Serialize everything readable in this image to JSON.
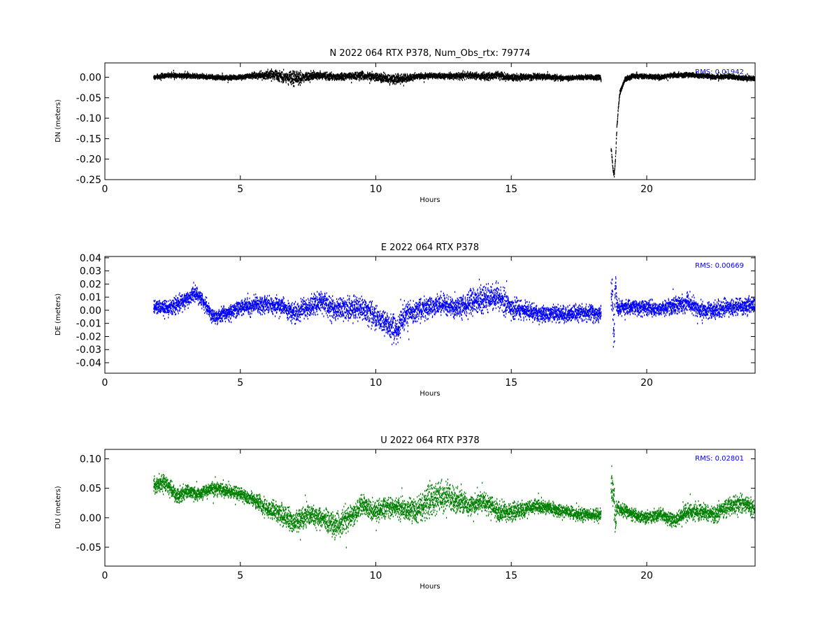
{
  "chart_data": [
    {
      "type": "scatter",
      "title": "N 2022 064 RTX  P378, Num_Obs_rtx: 79774",
      "xlabel": "Hours",
      "ylabel": "DN (meters)",
      "xlim": [
        0,
        24
      ],
      "ylim": [
        -0.25,
        0.035
      ],
      "xticks": [
        "0",
        "5",
        "10",
        "15",
        "20"
      ],
      "yticks": [
        "0.00",
        "-0.05",
        "-0.10",
        "-0.15",
        "-0.20",
        "-0.25"
      ],
      "ytick_values": [
        0.0,
        -0.05,
        -0.1,
        -0.15,
        -0.2,
        -0.25
      ],
      "color": "#000000",
      "rms_label": "RMS:  0.01942",
      "series": [
        {
          "x": [
            1.8,
            2.5,
            3.0,
            3.5,
            4.0,
            4.5,
            5.0,
            5.5,
            6.0,
            6.5,
            7.0,
            7.5,
            8.0,
            8.5,
            9.0,
            9.5,
            10.0,
            10.5,
            11.0,
            11.5,
            12.0,
            12.5,
            13.0,
            13.5,
            14.0,
            14.5,
            15.0,
            15.5,
            16.0,
            16.5,
            17.0,
            17.5,
            18.0,
            18.3,
            18.7,
            18.75,
            18.8,
            18.85,
            18.9,
            19.0,
            19.2,
            19.5,
            20.0,
            20.5,
            21.0,
            21.5,
            22.0,
            22.5,
            23.0,
            23.5,
            24.0
          ],
          "y": [
            0.0,
            0.005,
            0.004,
            0.002,
            0.0,
            -0.002,
            0.0,
            0.004,
            0.006,
            0.003,
            -0.005,
            0.002,
            0.005,
            0.0,
            0.002,
            0.004,
            0.0,
            -0.005,
            -0.003,
            0.002,
            0.004,
            0.002,
            0.003,
            0.004,
            0.002,
            0.005,
            -0.002,
            0.0,
            0.002,
            0.0,
            -0.002,
            0.0,
            0.0,
            0.0,
            -0.18,
            -0.22,
            -0.24,
            -0.2,
            -0.12,
            -0.04,
            -0.005,
            0.003,
            0.002,
            0.0,
            0.005,
            0.006,
            0.004,
            0.0,
            0.002,
            -0.002,
            -0.003
          ],
          "spread": [
            0.008,
            0.008,
            0.008,
            0.008,
            0.008,
            0.008,
            0.008,
            0.01,
            0.014,
            0.02,
            0.025,
            0.018,
            0.012,
            0.012,
            0.012,
            0.015,
            0.015,
            0.018,
            0.015,
            0.01,
            0.01,
            0.01,
            0.01,
            0.012,
            0.012,
            0.012,
            0.012,
            0.01,
            0.01,
            0.01,
            0.008,
            0.008,
            0.008,
            0.008,
            0.01,
            0.01,
            0.01,
            0.01,
            0.01,
            0.01,
            0.008,
            0.008,
            0.008,
            0.008,
            0.008,
            0.008,
            0.008,
            0.008,
            0.008,
            0.008,
            0.008
          ]
        }
      ]
    },
    {
      "type": "scatter",
      "title": "E 2022 064 RTX  P378",
      "xlabel": "Hours",
      "ylabel": "DE (meters)",
      "xlim": [
        0,
        24
      ],
      "ylim": [
        -0.048,
        0.041
      ],
      "xticks": [
        "0",
        "5",
        "10",
        "15",
        "20"
      ],
      "yticks": [
        "0.04",
        "0.03",
        "0.02",
        "0.01",
        "0.00",
        "-0.01",
        "-0.02",
        "-0.03",
        "-0.04"
      ],
      "ytick_values": [
        0.04,
        0.03,
        0.02,
        0.01,
        0.0,
        -0.01,
        -0.02,
        -0.03,
        -0.04
      ],
      "color": "#0000ff",
      "rms_label": "RMS:  0.00669",
      "series": [
        {
          "x": [
            1.8,
            2.5,
            3.0,
            3.3,
            3.6,
            4.0,
            4.5,
            5.0,
            5.5,
            6.0,
            6.5,
            7.0,
            7.5,
            8.0,
            8.5,
            9.0,
            9.5,
            10.0,
            10.5,
            10.8,
            11.0,
            11.5,
            12.0,
            12.5,
            13.0,
            13.5,
            14.0,
            14.5,
            15.0,
            15.5,
            16.0,
            16.5,
            17.0,
            17.5,
            18.0,
            18.3,
            18.7,
            18.8,
            18.85,
            18.9,
            19.0,
            19.5,
            20.0,
            20.5,
            21.0,
            21.5,
            22.0,
            22.5,
            23.0,
            23.5,
            24.0
          ],
          "y": [
            0.002,
            0.002,
            0.008,
            0.013,
            0.008,
            -0.005,
            -0.002,
            0.002,
            0.004,
            0.004,
            0.003,
            -0.003,
            0.002,
            0.006,
            0.0,
            0.001,
            0.002,
            -0.005,
            -0.012,
            -0.015,
            -0.005,
            0.0,
            0.003,
            0.004,
            0.002,
            0.006,
            0.008,
            0.01,
            0.002,
            0.0,
            -0.003,
            -0.002,
            -0.003,
            -0.002,
            -0.002,
            -0.003,
            0.015,
            -0.02,
            0.02,
            0.002,
            0.002,
            0.002,
            0.002,
            0.001,
            0.003,
            0.006,
            0.0,
            0.0,
            0.002,
            0.003,
            0.004
          ],
          "spread": [
            0.008,
            0.008,
            0.008,
            0.008,
            0.008,
            0.008,
            0.008,
            0.008,
            0.009,
            0.009,
            0.01,
            0.012,
            0.012,
            0.012,
            0.012,
            0.012,
            0.012,
            0.014,
            0.015,
            0.015,
            0.014,
            0.012,
            0.012,
            0.01,
            0.012,
            0.014,
            0.015,
            0.015,
            0.012,
            0.01,
            0.01,
            0.009,
            0.009,
            0.009,
            0.009,
            0.008,
            0.025,
            0.025,
            0.02,
            0.008,
            0.008,
            0.008,
            0.008,
            0.008,
            0.009,
            0.01,
            0.009,
            0.009,
            0.009,
            0.009,
            0.009
          ]
        }
      ]
    },
    {
      "type": "scatter",
      "title": "U 2022 064 RTX  P378",
      "xlabel": "Hours",
      "ylabel": "DU (meters)",
      "xlim": [
        0,
        24
      ],
      "ylim": [
        -0.082,
        0.116
      ],
      "xticks": [
        "0",
        "5",
        "10",
        "15",
        "20"
      ],
      "yticks": [
        "0.10",
        "0.05",
        "0.00",
        "-0.05"
      ],
      "ytick_values": [
        0.1,
        0.05,
        0.0,
        -0.05
      ],
      "color": "#008000",
      "rms_label": "RMS:  0.02801",
      "series": [
        {
          "x": [
            1.8,
            2.2,
            2.7,
            3.0,
            3.5,
            4.0,
            4.5,
            5.0,
            5.5,
            6.0,
            6.5,
            7.0,
            7.5,
            8.0,
            8.5,
            9.0,
            9.5,
            10.0,
            10.5,
            11.0,
            11.5,
            12.0,
            12.5,
            13.0,
            13.5,
            14.0,
            14.5,
            15.0,
            15.5,
            16.0,
            16.5,
            17.0,
            17.5,
            18.0,
            18.3,
            18.7,
            18.8,
            18.85,
            18.9,
            19.0,
            19.5,
            20.0,
            20.5,
            21.0,
            21.5,
            22.0,
            22.5,
            23.0,
            23.5,
            24.0
          ],
          "y": [
            0.055,
            0.06,
            0.035,
            0.045,
            0.04,
            0.05,
            0.045,
            0.04,
            0.03,
            0.015,
            0.005,
            -0.01,
            0.005,
            0.0,
            -0.015,
            0.0,
            0.02,
            0.01,
            0.02,
            0.015,
            0.01,
            0.03,
            0.035,
            0.03,
            0.02,
            0.03,
            0.01,
            0.01,
            0.015,
            0.02,
            0.015,
            0.01,
            0.005,
            0.005,
            0.005,
            0.06,
            0.03,
            -0.01,
            0.02,
            0.015,
            0.005,
            0.0,
            0.005,
            -0.005,
            0.01,
            0.01,
            0.005,
            0.02,
            0.025,
            0.015
          ],
          "spread": [
            0.018,
            0.02,
            0.02,
            0.018,
            0.015,
            0.015,
            0.015,
            0.015,
            0.018,
            0.02,
            0.025,
            0.03,
            0.025,
            0.025,
            0.03,
            0.03,
            0.025,
            0.025,
            0.025,
            0.025,
            0.03,
            0.04,
            0.04,
            0.03,
            0.02,
            0.025,
            0.025,
            0.022,
            0.02,
            0.018,
            0.015,
            0.015,
            0.015,
            0.015,
            0.015,
            0.04,
            0.04,
            0.04,
            0.02,
            0.015,
            0.015,
            0.015,
            0.015,
            0.018,
            0.02,
            0.02,
            0.02,
            0.022,
            0.022,
            0.022
          ]
        }
      ]
    }
  ]
}
